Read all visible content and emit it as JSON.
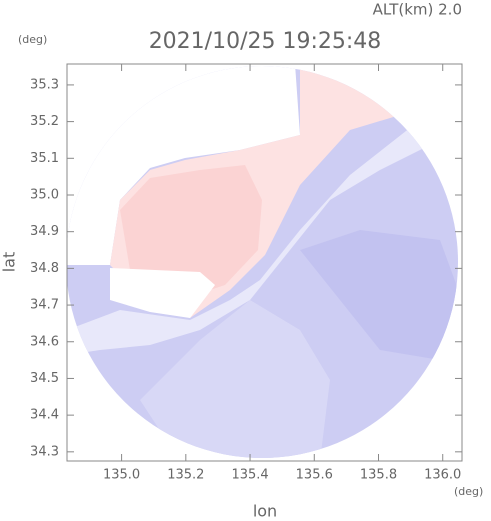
{
  "chart_data": {
    "type": "map",
    "title": "2021/10/25 19:25:48",
    "subtitle": "ALT(km) 2.0",
    "y_unit": "(deg)",
    "x_unit": "(deg)",
    "x_label": "lon",
    "y_label": "lat",
    "xlim": [
      134.83,
      136.06
    ],
    "ylim": [
      34.275,
      35.357
    ],
    "xticks": [
      {
        "value": 135,
        "label": "135.0"
      },
      135.2,
      135.4,
      135.6,
      135.8,
      {
        "value": 136,
        "label": "136.0"
      }
    ],
    "yticks": [
      34.3,
      34.4,
      34.5,
      34.6,
      34.7,
      34.8,
      34.9,
      {
        "value": 35,
        "label": "35.0"
      },
      35.1,
      35.2,
      35.3
    ]
  }
}
